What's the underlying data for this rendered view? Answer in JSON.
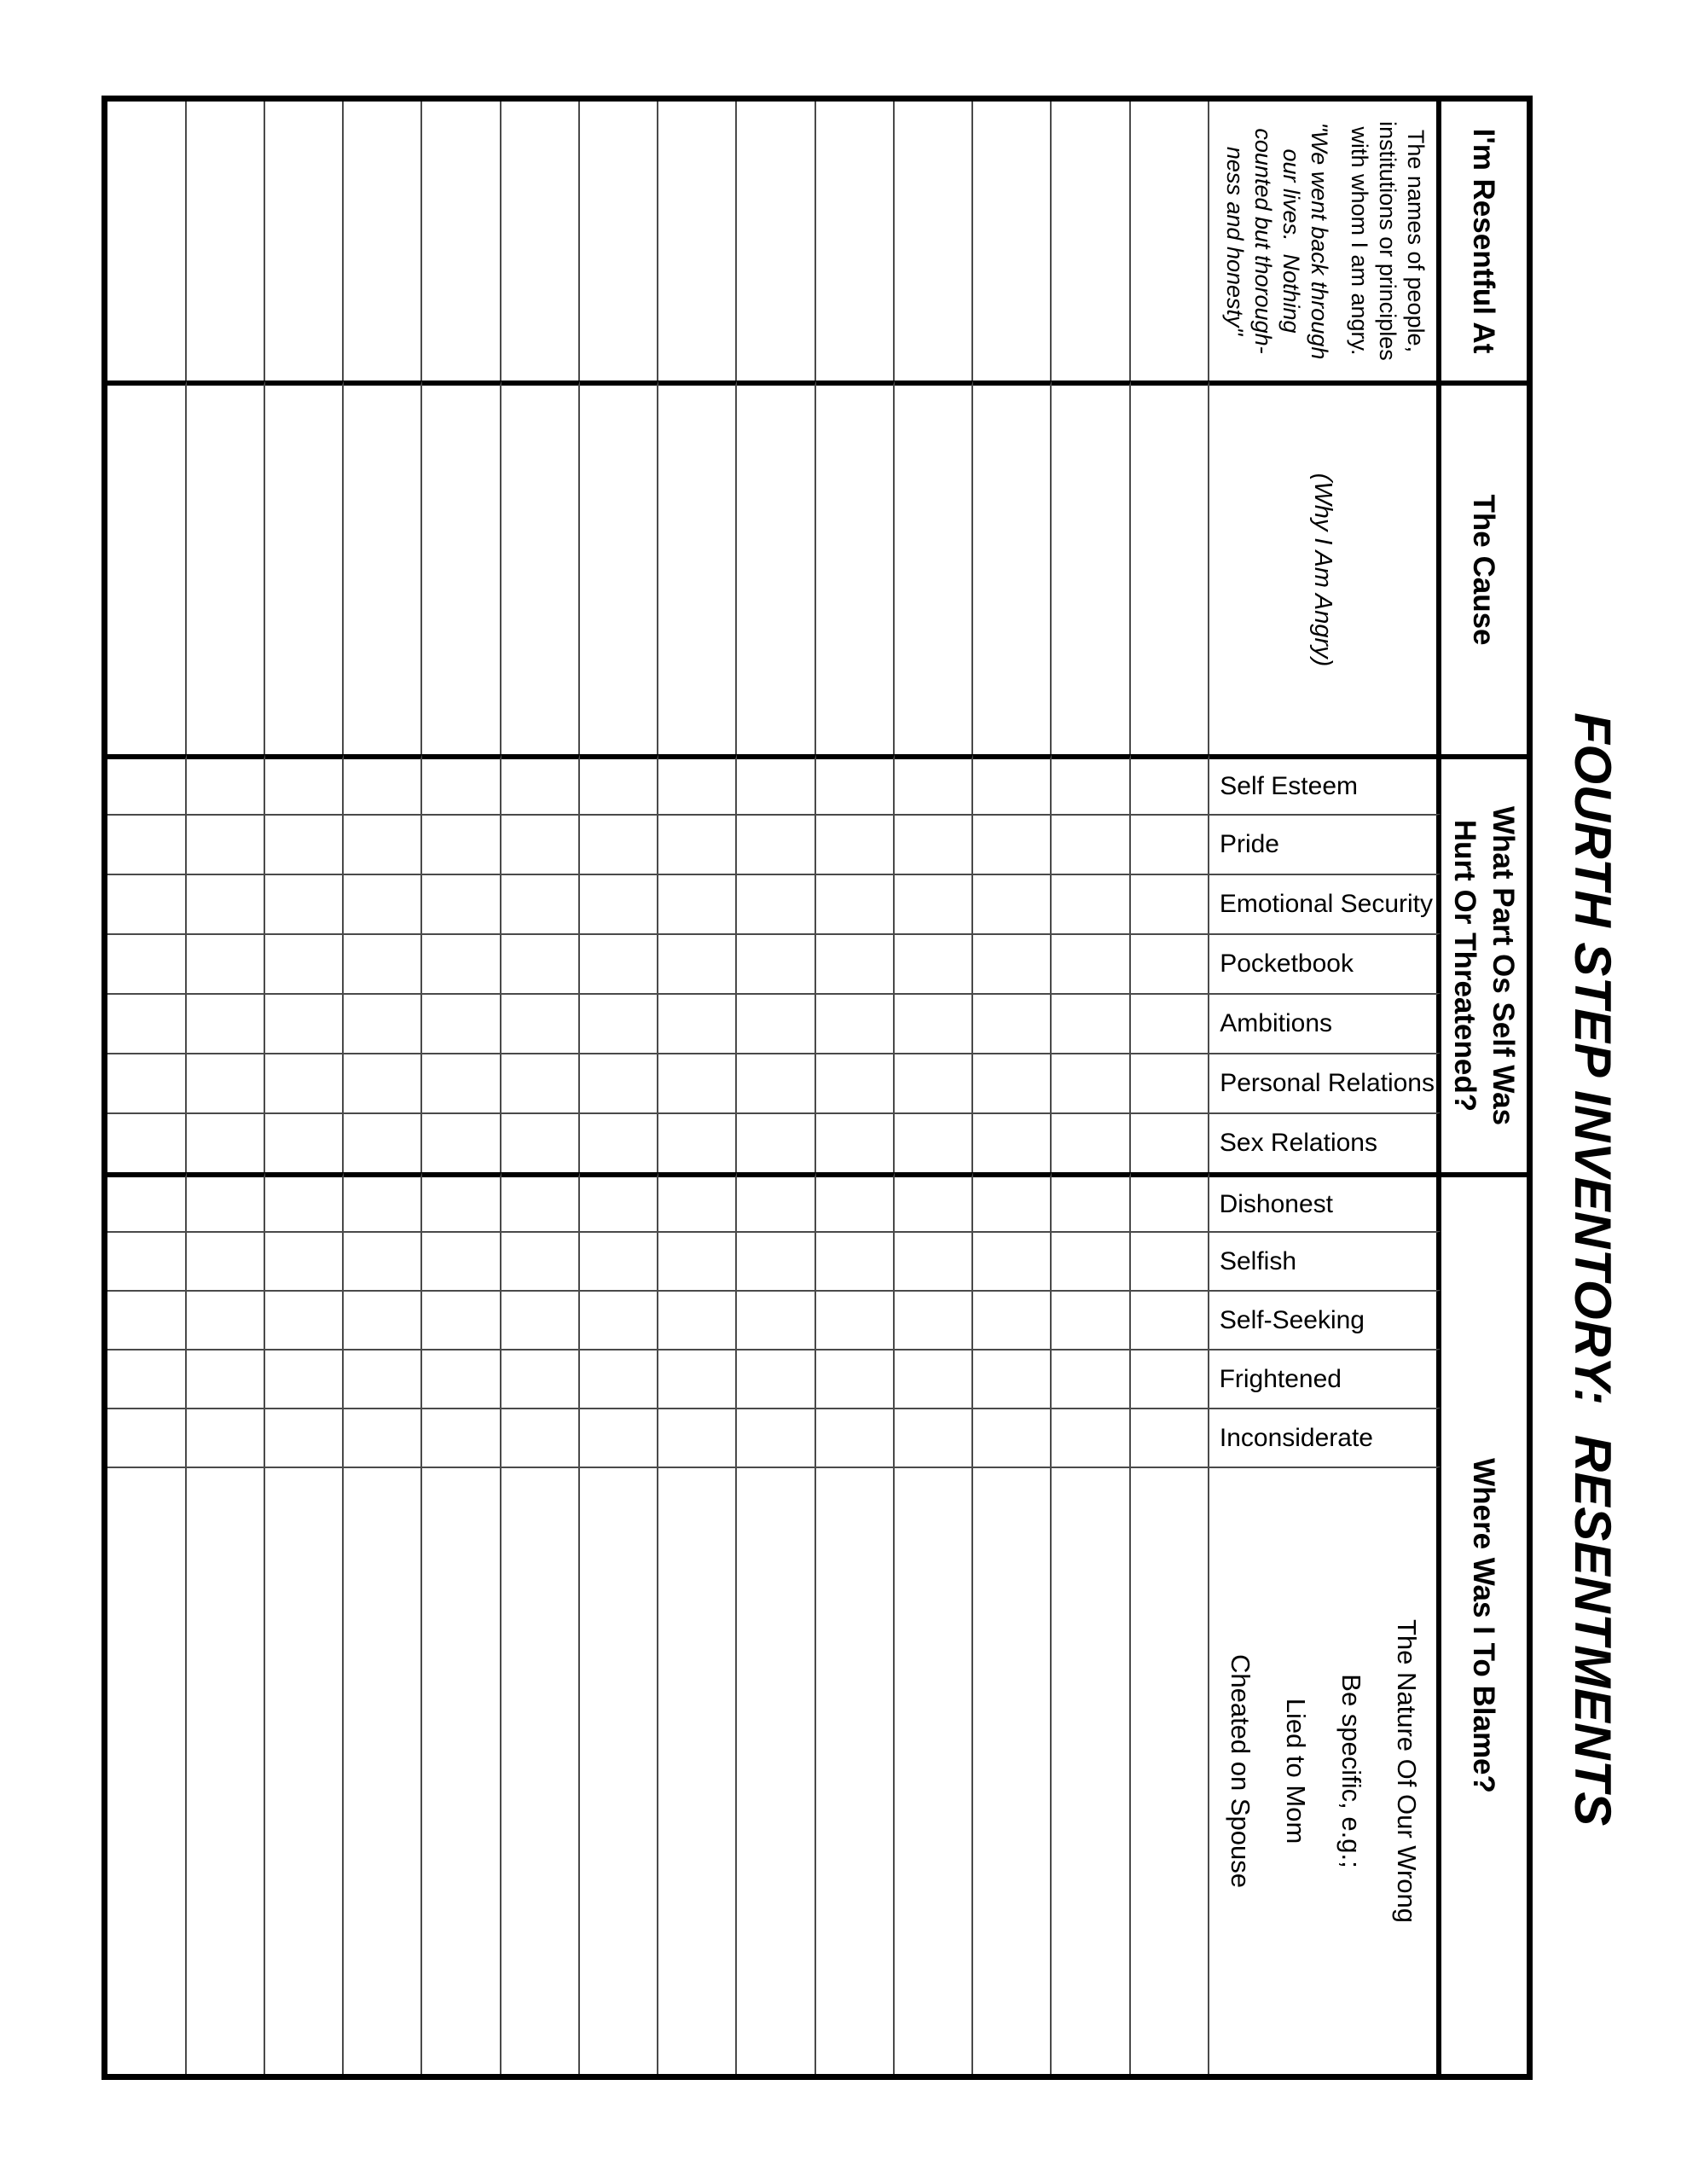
{
  "title": "FOURTH STEP INVENTORY:  RESENTMENTS",
  "table": {
    "columns": [
      {
        "id": "resentful",
        "header": "I'm Resentful At",
        "guide_paragraph": [
          "The names of people,",
          "institutions or principles",
          "with whom I am angry."
        ],
        "guide_quote": [
          "\"We went back through",
          "our lives.  Nothing",
          "counted but thorough-",
          "ness and honesty\""
        ]
      },
      {
        "id": "cause",
        "header": "The Cause",
        "guide_note": "(Why I Am Angry)"
      },
      {
        "id": "hurt",
        "header_lines": [
          "What Part Os Self Was",
          "Hurt Or Threatened?"
        ],
        "sub_columns": [
          "Self Esteem",
          "Pride",
          "Emotional Security",
          "Pocketbook",
          "Ambitions",
          "Personal Relations",
          "Sex Relations"
        ]
      },
      {
        "id": "blame",
        "header": "Where Was I To Blame?",
        "sub_columns": [
          "Dishonest",
          "Selfish",
          "Self-Seeking",
          "Frightened",
          "Inconsiderate"
        ],
        "nature_lines": [
          "The Nature Of Our Wrong",
          "Be specific, e.g.;",
          "Lied to Mom",
          "Cheated on Spouse"
        ]
      }
    ],
    "empty_row_count": 14
  },
  "colors": {
    "line_thin": "#4a4a4a",
    "line_thick": "#000000",
    "text": "#000000",
    "background": "#ffffff"
  }
}
